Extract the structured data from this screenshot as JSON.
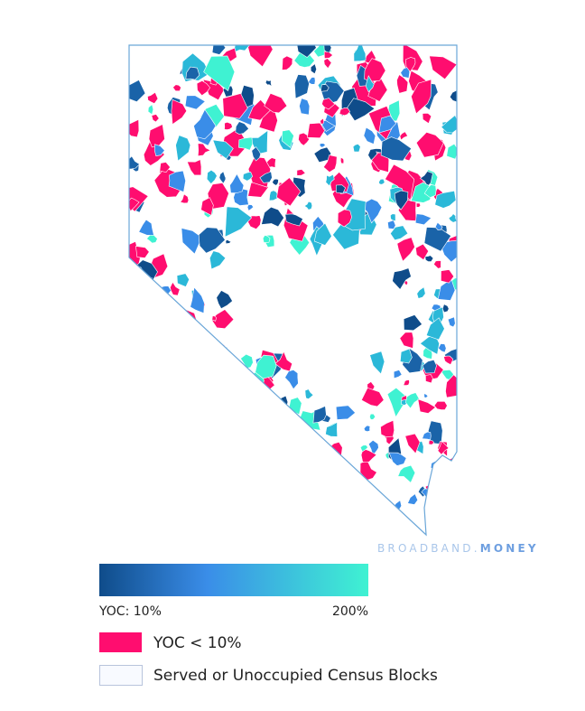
{
  "watermark": {
    "brand": "BROADBAND.",
    "suffix": "MONEY"
  },
  "legend": {
    "gradient_min_label": "YOC: 10%",
    "gradient_max_label": "200%",
    "items": [
      "YOC < 10%",
      "Served or Unoccupied Census Blocks"
    ]
  }
}
